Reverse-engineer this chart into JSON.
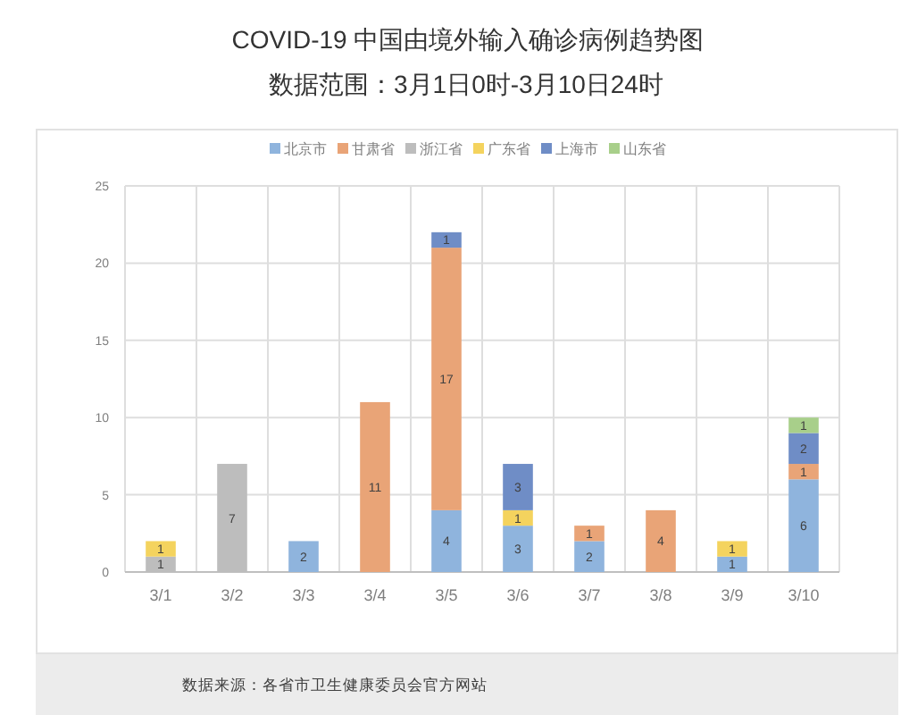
{
  "chart_data": {
    "type": "bar",
    "title": "COVID-19 中国由境外输入确诊病例趋势图",
    "subtitle": "数据范围：3月1日0时-3月10日24时",
    "categories": [
      "3/1",
      "3/2",
      "3/3",
      "3/4",
      "3/5",
      "3/6",
      "3/7",
      "3/8",
      "3/9",
      "3/10"
    ],
    "stacked": true,
    "series": [
      {
        "name": "北京市",
        "color": "#8fb4dd",
        "values": [
          null,
          null,
          2,
          null,
          4,
          3,
          2,
          null,
          1,
          6
        ]
      },
      {
        "name": "甘肃省",
        "color": "#e9a477",
        "values": [
          null,
          null,
          null,
          11,
          17,
          null,
          1,
          4,
          null,
          1
        ]
      },
      {
        "name": "浙江省",
        "color": "#bdbdbd",
        "values": [
          1,
          7,
          null,
          null,
          null,
          null,
          null,
          null,
          null,
          null
        ]
      },
      {
        "name": "广东省",
        "color": "#f4d35e",
        "values": [
          1,
          null,
          null,
          null,
          null,
          1,
          null,
          null,
          1,
          null
        ]
      },
      {
        "name": "上海市",
        "color": "#6f8dc6",
        "values": [
          null,
          null,
          null,
          null,
          1,
          3,
          null,
          null,
          null,
          2
        ]
      },
      {
        "name": "山东省",
        "color": "#a8cf8a",
        "values": [
          null,
          null,
          null,
          null,
          null,
          null,
          null,
          null,
          null,
          1
        ]
      }
    ],
    "ylim": [
      0,
      25
    ],
    "yticks": [
      0,
      5,
      10,
      15,
      20,
      25
    ],
    "grid": true,
    "legend": "top",
    "data_labels": true,
    "annotations": [
      "数据来源：各省市卫生健康委员会官方网站"
    ]
  }
}
